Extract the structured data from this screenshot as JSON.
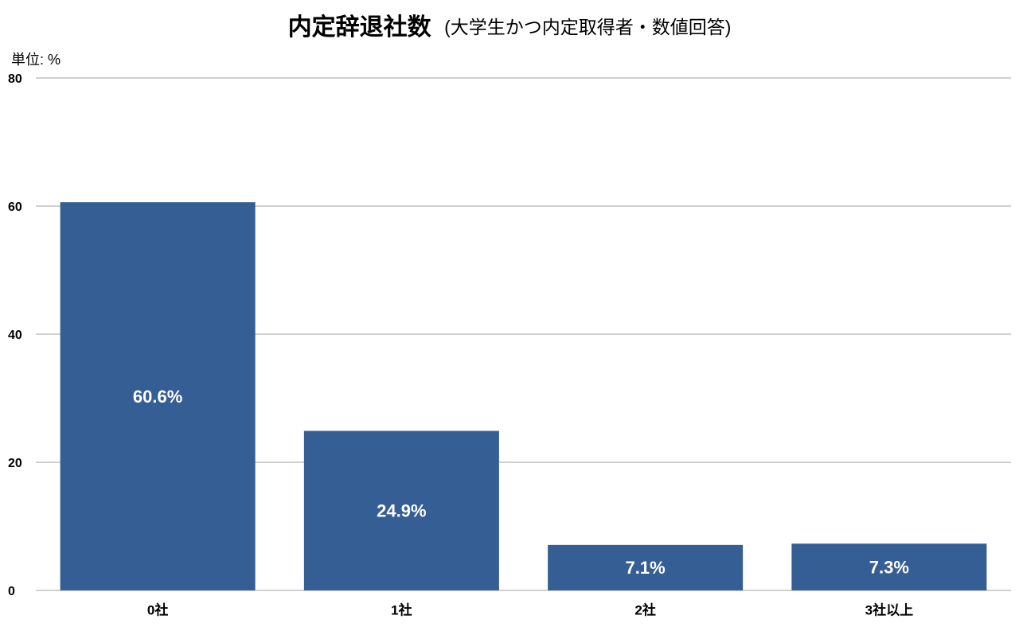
{
  "chart_data": {
    "type": "bar",
    "title": "内定辞退社数",
    "subtitle": "(大学生かつ内定取得者・数値回答)",
    "y_axis_label": "単位: %",
    "categories": [
      "0社",
      "1社",
      "2社",
      "3社以上"
    ],
    "values": [
      60.6,
      24.9,
      7.1,
      7.3
    ],
    "value_labels": [
      "60.6%",
      "24.9%",
      "7.1%",
      "7.3%"
    ],
    "color": "#345e94",
    "ylim": [
      0,
      80
    ],
    "yticks": [
      0,
      20,
      40,
      60,
      80
    ],
    "grid": true
  }
}
